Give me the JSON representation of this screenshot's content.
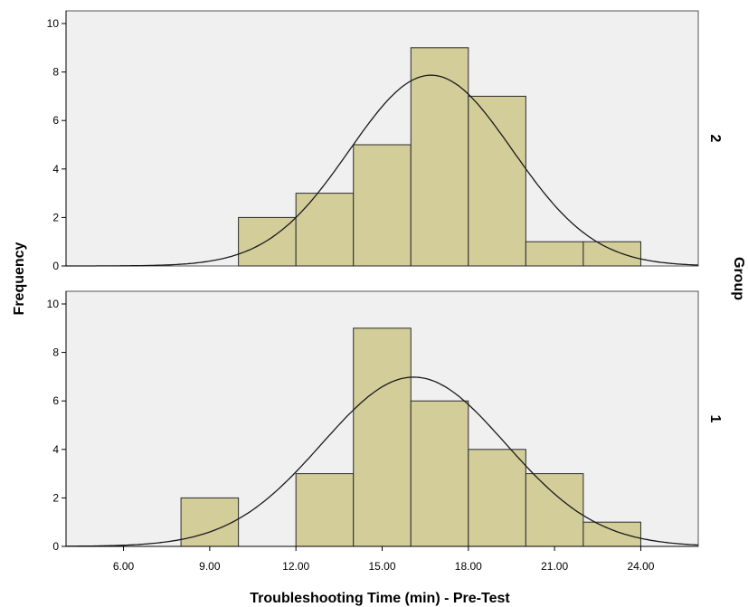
{
  "chart_data": {
    "type": "bar",
    "subtype": "paneled-histogram-with-normal-curve",
    "xlabel": "Troubleshooting Time (min) - Pre-Test",
    "ylabel": "Frequency",
    "panel_axis_label": "Group",
    "xlim": [
      4.0,
      26.0
    ],
    "ylim": [
      0,
      10
    ],
    "x_ticks": [
      6,
      9,
      12,
      15,
      18,
      21,
      24
    ],
    "x_tick_labels": [
      "6.00",
      "9.00",
      "12.00",
      "15.00",
      "18.00",
      "21.00",
      "24.00"
    ],
    "y_ticks": [
      0,
      2,
      4,
      6,
      8,
      10
    ],
    "y_tick_labels": [
      "0",
      "2",
      "4",
      "6",
      "8",
      "10"
    ],
    "grid": false,
    "colors": {
      "bar_fill": "#d3cd9a",
      "bar_stroke": "#2b2b2b",
      "panel_bg": "#f0f0f0",
      "curve": "#1a1a1a"
    },
    "panels": [
      {
        "label": "2",
        "bins": [
          {
            "start": 10,
            "end": 12,
            "count": 2
          },
          {
            "start": 12,
            "end": 14,
            "count": 3
          },
          {
            "start": 14,
            "end": 16,
            "count": 5
          },
          {
            "start": 16,
            "end": 18,
            "count": 9
          },
          {
            "start": 18,
            "end": 20,
            "count": 7
          },
          {
            "start": 20,
            "end": 22,
            "count": 1
          },
          {
            "start": 22,
            "end": 24,
            "count": 1
          }
        ],
        "normal_curve": {
          "mean": 16.7,
          "sd": 2.84,
          "n": 28,
          "bin_width": 2
        }
      },
      {
        "label": "1",
        "bins": [
          {
            "start": 8,
            "end": 10,
            "count": 2
          },
          {
            "start": 12,
            "end": 14,
            "count": 3
          },
          {
            "start": 14,
            "end": 16,
            "count": 9
          },
          {
            "start": 16,
            "end": 18,
            "count": 6
          },
          {
            "start": 18,
            "end": 20,
            "count": 4
          },
          {
            "start": 20,
            "end": 22,
            "count": 3
          },
          {
            "start": 22,
            "end": 24,
            "count": 1
          }
        ],
        "normal_curve": {
          "mean": 16.1,
          "sd": 3.2,
          "n": 28,
          "bin_width": 2
        }
      }
    ]
  }
}
